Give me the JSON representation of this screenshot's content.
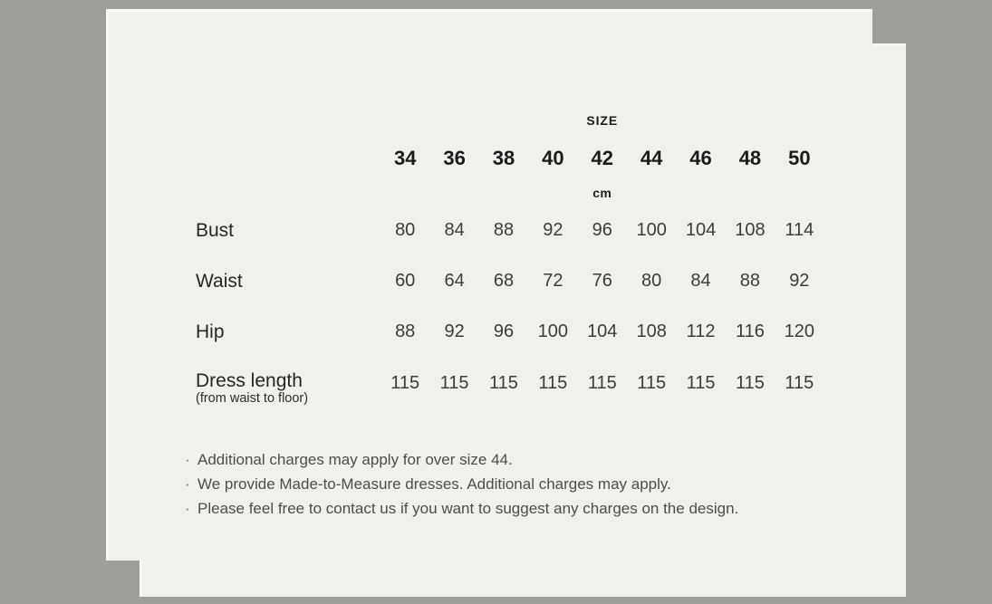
{
  "background_color": "#9e9e9d",
  "card_color": "#f0f0ef",
  "size_chart": {
    "size_caption": "SIZE",
    "unit_caption": "cm",
    "sizes": [
      "34",
      "36",
      "38",
      "40",
      "42",
      "44",
      "46",
      "48",
      "50"
    ],
    "rows": [
      {
        "label": "Bust",
        "sublabel": "",
        "values": [
          "80",
          "84",
          "88",
          "92",
          "96",
          "100",
          "104",
          "108",
          "114"
        ]
      },
      {
        "label": "Waist",
        "sublabel": "",
        "values": [
          "60",
          "64",
          "68",
          "72",
          "76",
          "80",
          "84",
          "88",
          "92"
        ]
      },
      {
        "label": "Hip",
        "sublabel": "",
        "values": [
          "88",
          "92",
          "96",
          "100",
          "104",
          "108",
          "112",
          "116",
          "120"
        ]
      },
      {
        "label": "Dress length",
        "sublabel": "(from waist to floor)",
        "values": [
          "115",
          "115",
          "115",
          "115",
          "115",
          "115",
          "115",
          "115",
          "115"
        ]
      }
    ]
  },
  "notes": {
    "bullet": "·",
    "items": [
      "Additional charges may apply for over size 44.",
      "We provide Made-to-Measure dresses. Additional charges may apply.",
      "Please feel free to contact us if you want to suggest any charges on the design."
    ]
  }
}
